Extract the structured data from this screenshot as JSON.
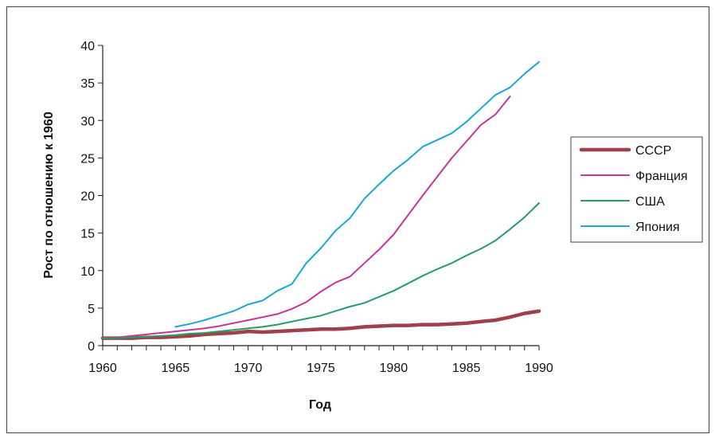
{
  "chart_data": {
    "type": "line",
    "title": "",
    "xlabel": "Год",
    "ylabel": "Рост по отношению к 1960",
    "xlim": [
      1960,
      1990
    ],
    "ylim": [
      0,
      40
    ],
    "x_ticks": [
      1960,
      1965,
      1970,
      1975,
      1980,
      1985,
      1990
    ],
    "y_ticks": [
      0,
      5,
      10,
      15,
      20,
      25,
      30,
      35,
      40
    ],
    "grid": false,
    "legend_position": "right",
    "series": [
      {
        "name": "СССР",
        "color": "#a0404a",
        "x": [
          1960,
          1961,
          1962,
          1963,
          1964,
          1965,
          1966,
          1967,
          1968,
          1969,
          1970,
          1971,
          1972,
          1973,
          1974,
          1975,
          1976,
          1977,
          1978,
          1979,
          1980,
          1981,
          1982,
          1983,
          1984,
          1985,
          1986,
          1987,
          1988,
          1989,
          1990
        ],
        "values": [
          1.0,
          1.0,
          1.0,
          1.1,
          1.1,
          1.2,
          1.3,
          1.5,
          1.6,
          1.7,
          1.9,
          1.8,
          1.9,
          2.0,
          2.1,
          2.2,
          2.2,
          2.3,
          2.5,
          2.6,
          2.7,
          2.7,
          2.8,
          2.8,
          2.9,
          3.0,
          3.2,
          3.4,
          3.8,
          4.3,
          4.6
        ]
      },
      {
        "name": "Франция",
        "color": "#cc3399",
        "x": [
          1960,
          1961,
          1962,
          1963,
          1964,
          1965,
          1966,
          1967,
          1968,
          1969,
          1970,
          1971,
          1972,
          1973,
          1974,
          1975,
          1976,
          1977,
          1978,
          1979,
          1980,
          1981,
          1982,
          1983,
          1984,
          1985,
          1986,
          1987,
          1988
        ],
        "values": [
          1.0,
          1.1,
          1.3,
          1.5,
          1.7,
          1.9,
          2.1,
          2.3,
          2.6,
          3.0,
          3.4,
          3.8,
          4.2,
          4.9,
          5.8,
          7.2,
          8.4,
          9.2,
          11.0,
          12.8,
          14.8,
          17.4,
          20.0,
          22.5,
          25.0,
          27.2,
          29.4,
          30.8,
          33.2
        ]
      },
      {
        "name": "США",
        "color": "#21a062",
        "x": [
          1960,
          1961,
          1962,
          1963,
          1964,
          1965,
          1966,
          1967,
          1968,
          1969,
          1970,
          1971,
          1972,
          1973,
          1974,
          1975,
          1976,
          1977,
          1978,
          1979,
          1980,
          1981,
          1982,
          1983,
          1984,
          1985,
          1986,
          1987,
          1988,
          1989,
          1990
        ],
        "values": [
          1.0,
          1.0,
          1.1,
          1.2,
          1.3,
          1.4,
          1.6,
          1.7,
          1.9,
          2.1,
          2.3,
          2.5,
          2.8,
          3.2,
          3.6,
          4.0,
          4.6,
          5.2,
          5.7,
          6.5,
          7.3,
          8.3,
          9.3,
          10.2,
          11.0,
          12.0,
          12.9,
          14.0,
          15.5,
          17.1,
          19.0
        ]
      },
      {
        "name": "Япония",
        "color": "#1aa6d8",
        "x": [
          1965,
          1966,
          1967,
          1968,
          1969,
          1970,
          1971,
          1972,
          1973,
          1974,
          1975,
          1976,
          1977,
          1978,
          1979,
          1980,
          1981,
          1982,
          1983,
          1984,
          1985,
          1986,
          1987,
          1988,
          1989,
          1990
        ],
        "values": [
          2.5,
          2.9,
          3.4,
          4.0,
          4.6,
          5.5,
          6.0,
          7.3,
          8.2,
          11.0,
          13.0,
          15.3,
          17.0,
          19.6,
          21.5,
          23.3,
          24.8,
          26.5,
          27.4,
          28.3,
          29.8,
          31.6,
          33.4,
          34.4,
          36.2,
          37.8
        ]
      }
    ]
  }
}
